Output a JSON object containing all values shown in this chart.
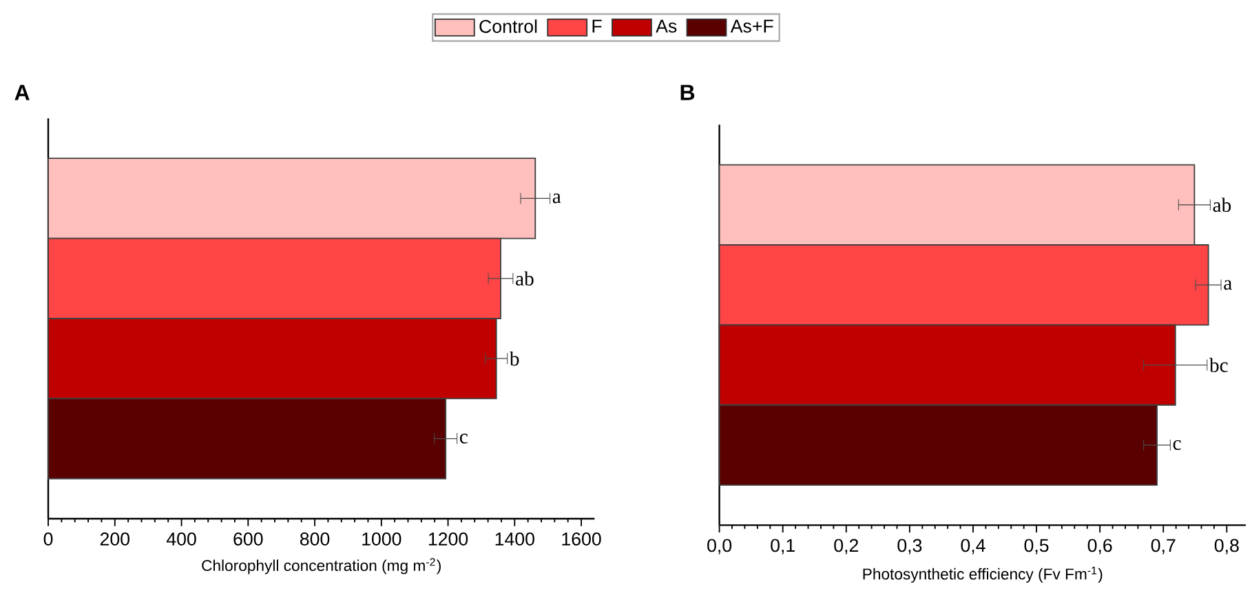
{
  "chart_data": [
    {
      "type": "bar",
      "orientation": "horizontal",
      "title": "A",
      "categories": [
        null
      ],
      "xlabel": "Chlorophyll concentration (mg m$^{-2}$)",
      "xlim": [
        0,
        1640
      ],
      "xticks": [
        0,
        200,
        400,
        600,
        800,
        1000,
        1200,
        1400,
        1600
      ],
      "tick_labels": "x",
      "legend": "top",
      "series": [
        {
          "name": "Control",
          "color": "#ffc0bd",
          "values": [
            1462
          ],
          "errors": [
            44
          ],
          "value_labels": [
            "a"
          ]
        },
        {
          "name": "F",
          "color": "#ff4545",
          "values": [
            1358
          ],
          "errors": [
            37
          ],
          "value_labels": [
            "ab"
          ]
        },
        {
          "name": "As",
          "color": "#c00000",
          "values": [
            1345
          ],
          "errors": [
            33
          ],
          "value_labels": [
            "b"
          ]
        },
        {
          "name": "As+F",
          "color": "#5a0000",
          "values": [
            1193
          ],
          "errors": [
            34
          ],
          "value_labels": [
            "c"
          ]
        }
      ]
    },
    {
      "type": "bar",
      "orientation": "horizontal",
      "title": "B",
      "categories": [
        null
      ],
      "xlabel": "Photosynthetic efficiency (Fv Fm$^{-1}$)",
      "xlim": [
        0,
        0.83
      ],
      "xticks": [
        {
          "value": 0,
          "label": "0,0"
        },
        {
          "value": 0.1,
          "label": "0,1"
        },
        {
          "value": 0.2,
          "label": "0,2"
        },
        {
          "value": 0.3,
          "label": "0,3"
        },
        {
          "value": 0.4,
          "label": "0,4"
        },
        {
          "value": 0.5,
          "label": "0,5"
        },
        {
          "value": 0.6,
          "label": "0,6"
        },
        {
          "value": 0.7,
          "label": "0,7"
        },
        {
          "value": 0.8,
          "label": "0,8"
        }
      ],
      "tick_labels": "x",
      "series": [
        {
          "color": "#ffc0bd",
          "values": [
            0.749
          ],
          "errors": [
            0.025
          ],
          "value_labels": [
            "ab"
          ]
        },
        {
          "color": "#ff4545",
          "values": [
            0.771
          ],
          "errors": [
            0.02
          ],
          "value_labels": [
            "a"
          ]
        },
        {
          "color": "#c00000",
          "values": [
            0.719
          ],
          "errors": [
            0.05
          ],
          "value_labels": [
            "bc"
          ]
        },
        {
          "color": "#5a0000",
          "values": [
            0.69
          ],
          "errors": [
            0.021
          ],
          "value_labels": [
            "c"
          ]
        }
      ]
    }
  ]
}
